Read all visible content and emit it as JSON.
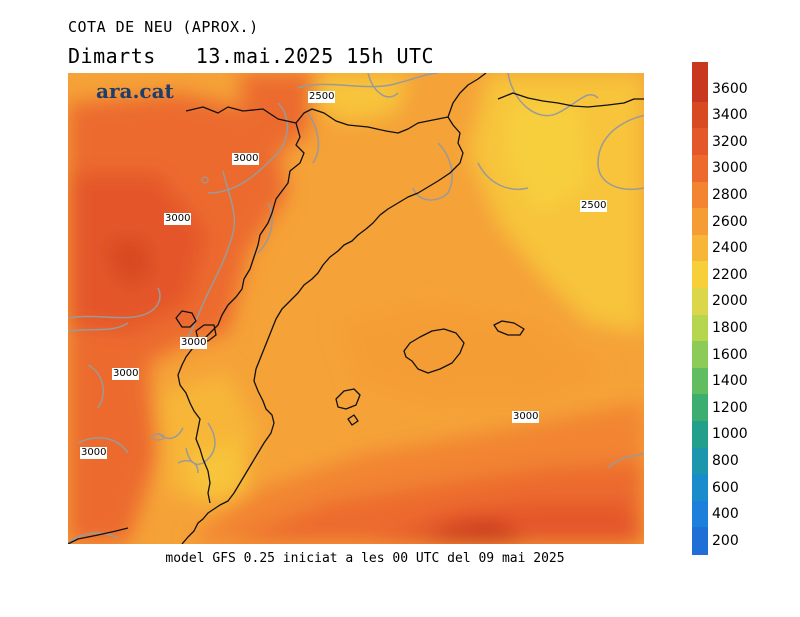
{
  "title": "COTA DE NEU (APROX.)",
  "day": "Dimarts",
  "datetime": "13.mai.2025 15h UTC",
  "brand": "ara.cat",
  "footer": "model GFS 0.25 iniciat a les 00 UTC del 09 mai 2025",
  "contour_labels": [
    "2500",
    "3000",
    "3000",
    "2500",
    "3000",
    "3000",
    "3000",
    "3000"
  ],
  "colorbar": {
    "labels": [
      "3600",
      "3400",
      "3200",
      "3000",
      "2800",
      "2600",
      "2400",
      "2200",
      "2000",
      "1800",
      "1600",
      "1400",
      "1200",
      "1000",
      "800",
      "600",
      "400",
      "200"
    ],
    "colors": [
      "#c8371e",
      "#d84a22",
      "#e4572a",
      "#ec6a2e",
      "#f28432",
      "#f59d34",
      "#f7b637",
      "#f6cf3a",
      "#dcd64a",
      "#b6d64f",
      "#8ccb58",
      "#62bd60",
      "#3eae70",
      "#23a08c",
      "#1c96ad",
      "#1a8ccc",
      "#1b7fdb",
      "#1f6fd6"
    ]
  }
}
